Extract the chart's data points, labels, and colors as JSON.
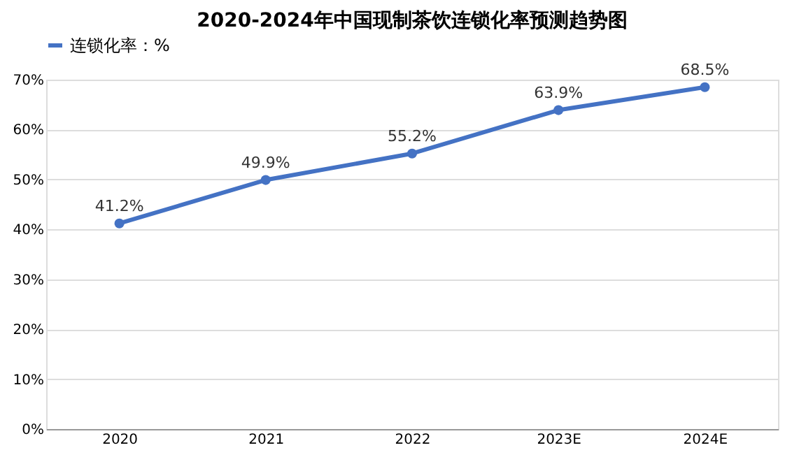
{
  "chart_data": {
    "type": "line",
    "title": "2020-2024年中国现制茶饮连锁化率预测趋势图",
    "categories": [
      "2020",
      "2021",
      "2022",
      "2023E",
      "2024E"
    ],
    "series": [
      {
        "name": "连锁化率：%",
        "color": "#4472c4",
        "values": [
          41.2,
          49.9,
          55.2,
          63.9,
          68.5
        ],
        "value_labels": [
          "41.2%",
          "49.9%",
          "55.2%",
          "63.9%",
          "68.5%"
        ]
      }
    ],
    "ylim": [
      0,
      70
    ],
    "yticks": [
      {
        "value": 0,
        "label": "0%"
      },
      {
        "value": 10,
        "label": "10%"
      },
      {
        "value": 20,
        "label": "20%"
      },
      {
        "value": 30,
        "label": "30%"
      },
      {
        "value": 40,
        "label": "40%"
      },
      {
        "value": 50,
        "label": "50%"
      },
      {
        "value": 60,
        "label": "60%"
      },
      {
        "value": 70,
        "label": "70%"
      }
    ],
    "grid": "y",
    "legend": "top",
    "marker": "circle",
    "line_style": "solid"
  }
}
